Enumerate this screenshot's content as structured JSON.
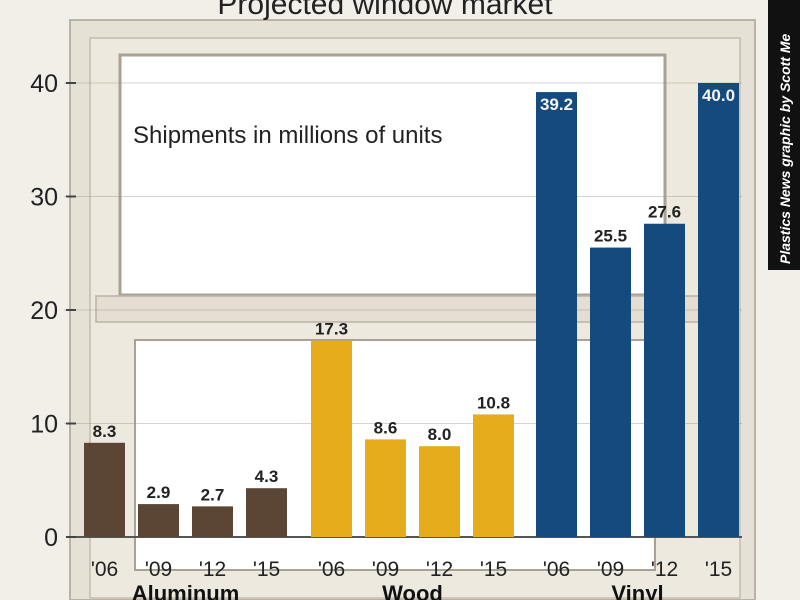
{
  "chart_data": {
    "type": "bar",
    "title": "Projected window market",
    "annotation": "Shipments in millions of units",
    "credit": "Plastics News graphic by Scott Me",
    "ylim": [
      0,
      45
    ],
    "yticks": [
      0,
      10,
      20,
      30,
      40
    ],
    "categories": [
      "'06",
      "'09",
      "'12",
      "'15",
      "'06",
      "'09",
      "'12",
      "'15",
      "'06",
      "'09",
      "'12",
      "'15"
    ],
    "groups": [
      {
        "name": "Aluminum",
        "color": "#5b4636",
        "years": [
          "'06",
          "'09",
          "'12",
          "'15"
        ],
        "values": [
          8.3,
          2.9,
          2.7,
          4.3
        ],
        "labels": [
          "8.3",
          "2.9",
          "2.7",
          "4.3"
        ]
      },
      {
        "name": "Wood",
        "color": "#e5ad1c",
        "years": [
          "'06",
          "'09",
          "'12",
          "'15"
        ],
        "values": [
          17.3,
          8.6,
          8.0,
          10.8
        ],
        "labels": [
          "17.3",
          "8.6",
          "8.0",
          "10.8"
        ]
      },
      {
        "name": "Vinyl",
        "color": "#144a7e",
        "years": [
          "'06",
          "'09",
          "'12",
          "'15"
        ],
        "values": [
          39.2,
          25.5,
          27.6,
          40.0
        ],
        "labels": [
          "39.2",
          "25.5",
          "27.6",
          "40.0"
        ]
      }
    ],
    "grid": true,
    "legend": "none"
  }
}
